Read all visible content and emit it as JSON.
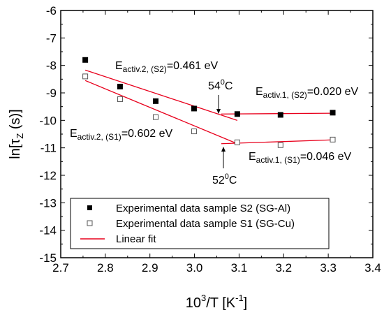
{
  "chart_data": {
    "type": "scatter",
    "title": "",
    "xlabel": {
      "base": "10",
      "sup": "3",
      "rest": "/T [K",
      "sup2": "-1",
      "tail": "]"
    },
    "ylabel": {
      "pre": "ln[",
      "greek": "τ",
      "sub": "Z",
      "post": " (s)]"
    },
    "xlim": [
      2.7,
      3.4
    ],
    "ylim": [
      -15,
      -6
    ],
    "xticks": [
      "2.7",
      "2.8",
      "2.9",
      "3.0",
      "3.1",
      "3.2",
      "3.3",
      "3.4"
    ],
    "yticks": [
      "-6",
      "-7",
      "-8",
      "-9",
      "-10",
      "-11",
      "-12",
      "-13",
      "-14",
      "-15"
    ],
    "series": [
      {
        "name": "Experimental data sample S2 (SG-Al)",
        "marker": "filled-square",
        "x": [
          2.755,
          2.833,
          2.913,
          2.999,
          3.096,
          3.193,
          3.31
        ],
        "y": [
          -7.8,
          -8.77,
          -9.3,
          -9.57,
          -9.77,
          -9.8,
          -9.72
        ]
      },
      {
        "name": "Experimental data sample S1 (SG-Cu)",
        "marker": "open-square",
        "x": [
          2.755,
          2.833,
          2.913,
          2.999,
          3.096,
          3.193,
          3.31
        ],
        "y": [
          -8.4,
          -9.23,
          -9.88,
          -10.4,
          -10.8,
          -10.9,
          -10.7
        ]
      }
    ],
    "fits": [
      {
        "x": [
          2.755,
          3.096
        ],
        "y": [
          -8.17,
          -10.0
        ]
      },
      {
        "x": [
          3.06,
          3.31
        ],
        "y": [
          -9.77,
          -9.74
        ]
      },
      {
        "x": [
          2.755,
          3.096
        ],
        "y": [
          -8.55,
          -10.85
        ]
      },
      {
        "x": [
          3.06,
          3.31
        ],
        "y": [
          -10.85,
          -10.71
        ]
      }
    ],
    "fit_name": "Linear fit",
    "fit_color": "#e8001c",
    "marker_color": "#000000",
    "annotations": [
      {
        "main": "E",
        "sub": "activ.2, (S2)",
        "value": "=0.461 eV"
      },
      {
        "main": "E",
        "sub": "activ.1, (S2)",
        "value": "=0.020 eV"
      },
      {
        "main": "E",
        "sub": "activ.2, (S1)",
        "value": "=0.602 eV"
      },
      {
        "main": "E",
        "sub": "activ.1, (S1)",
        "value": "=0.046 eV"
      }
    ],
    "temp_labels": [
      {
        "value": "54",
        "sup": "0",
        "unit": "C"
      },
      {
        "value": "52",
        "sup": "0",
        "unit": "C"
      }
    ],
    "legend_position": "bottom-left"
  }
}
